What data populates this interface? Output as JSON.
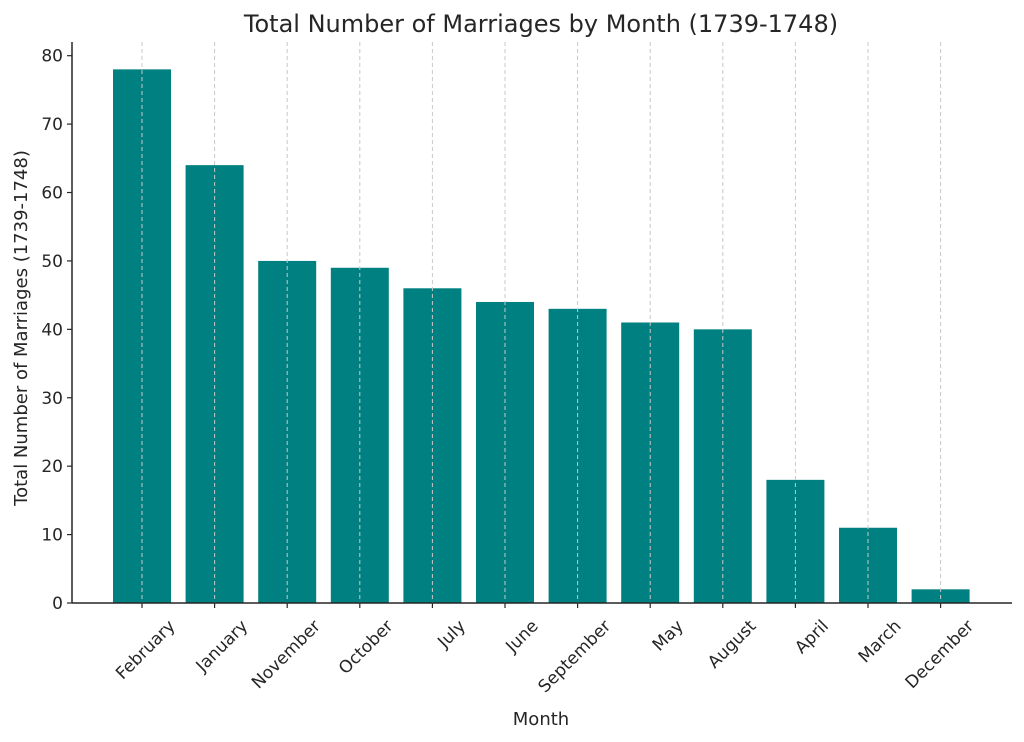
{
  "chart_data": {
    "type": "bar",
    "title": "Total Number of Marriages by Month (1739-1748)",
    "xlabel": "Month",
    "ylabel": "Total Number of Marriages (1739-1748)",
    "categories": [
      "February",
      "January",
      "November",
      "October",
      "July",
      "June",
      "September",
      "May",
      "August",
      "April",
      "March",
      "December"
    ],
    "values": [
      78,
      64,
      50,
      49,
      46,
      44,
      43,
      41,
      40,
      18,
      11,
      2
    ],
    "ylim": [
      0,
      82
    ],
    "yticks": [
      0,
      10,
      20,
      30,
      40,
      50,
      60,
      70,
      80
    ],
    "bar_color": "#008080",
    "grid": "vertical dashed at each category",
    "x_tick_rotation": -45
  }
}
